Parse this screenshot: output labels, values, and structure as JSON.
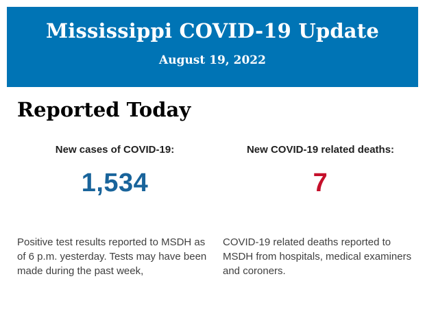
{
  "banner": {
    "title": "Mississippi COVID-19 Update",
    "date": "August 19, 2022",
    "background_color": "#0074B5",
    "text_color": "#FFFFFF"
  },
  "section_title": "Reported Today",
  "stats": {
    "cases": {
      "label": "New cases of COVID-19:",
      "value": "1,534",
      "value_color": "#19649B",
      "description": "Positive test results reported to MSDH as of 6 p.m. yesterday. Tests may have been made during the past week,"
    },
    "deaths": {
      "label": "New COVID-19 related deaths:",
      "value": "7",
      "value_color": "#C5102B",
      "description": "COVID-19 related deaths reported to MSDH from hospitals, medical examiners and coroners."
    }
  }
}
